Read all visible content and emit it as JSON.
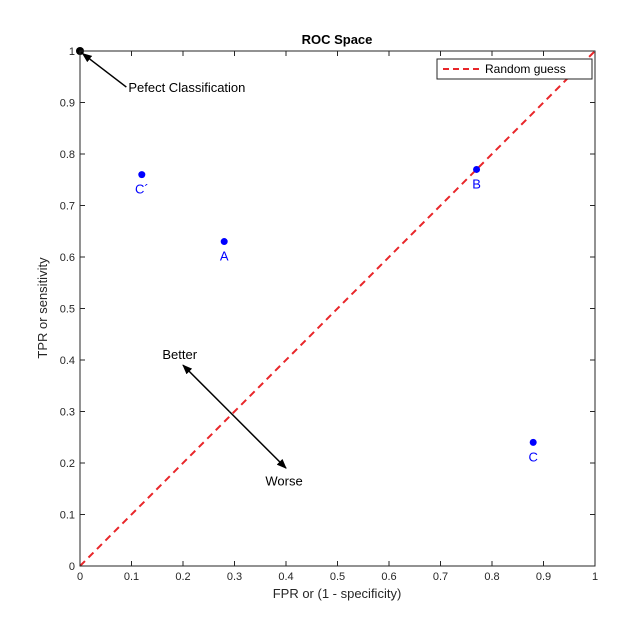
{
  "chart_data": {
    "type": "scatter",
    "title": "ROC Space",
    "xlabel": "FPR or (1 - specificity)",
    "ylabel": "TPR or sensitivity",
    "xlim": [
      0,
      1
    ],
    "ylim": [
      0,
      1
    ],
    "xticks": [
      "0",
      "0.1",
      "0.2",
      "0.3",
      "0.4",
      "0.5",
      "0.6",
      "0.7",
      "0.8",
      "0.9",
      "1"
    ],
    "yticks": [
      "0",
      "0.1",
      "0.2",
      "0.3",
      "0.4",
      "0.5",
      "0.6",
      "0.7",
      "0.8",
      "0.9",
      "1"
    ],
    "grid": false,
    "legend_position": "top-right",
    "point_color": "#0000ff",
    "diagonal_color": "#e8262a",
    "points": [
      {
        "label": "A",
        "x": 0.28,
        "y": 0.63
      },
      {
        "label": "B",
        "x": 0.77,
        "y": 0.77
      },
      {
        "label": "C",
        "x": 0.88,
        "y": 0.24
      },
      {
        "label": "C´",
        "x": 0.12,
        "y": 0.76
      }
    ],
    "perfect_point": {
      "x": 0,
      "y": 1
    },
    "series": [
      {
        "name": "Random guess",
        "x": [
          0,
          1
        ],
        "y": [
          0,
          1
        ],
        "style": "dashed"
      }
    ],
    "annotations": [
      {
        "text": "Pefect Classification",
        "from": [
          0.09,
          0.93
        ],
        "to": [
          0.005,
          0.995
        ]
      },
      {
        "text": "Better",
        "from": [
          0.29,
          0.3
        ],
        "to": [
          0.2,
          0.39
        ]
      },
      {
        "text": "Worse",
        "from": [
          0.29,
          0.3
        ],
        "to": [
          0.4,
          0.19
        ]
      }
    ]
  }
}
